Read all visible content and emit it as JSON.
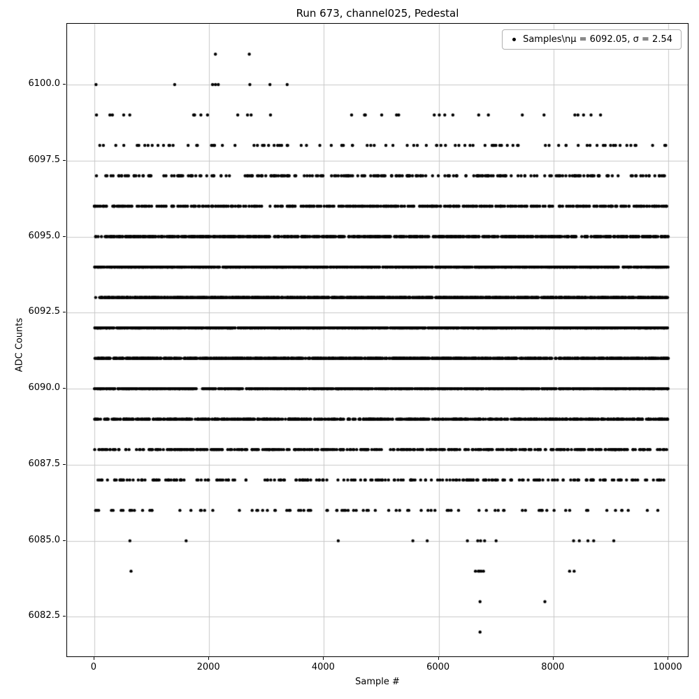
{
  "chart_data": {
    "type": "scatter",
    "title": "Run 673, channel025, Pedestal",
    "xlabel": "Sample #",
    "ylabel": "ADC Counts",
    "xlim": [
      -474,
      10340
    ],
    "ylim": [
      6081.2,
      6102.0
    ],
    "x_ticks": [
      0,
      2000,
      4000,
      6000,
      8000,
      10000
    ],
    "x_tick_labels": [
      "0",
      "2000",
      "4000",
      "6000",
      "8000",
      "10000"
    ],
    "y_ticks": [
      6082.5,
      6085.0,
      6087.5,
      6090.0,
      6092.5,
      6095.0,
      6097.5,
      6100.0
    ],
    "y_tick_labels": [
      "6082.5",
      "6085.0",
      "6087.5",
      "6090.0",
      "6092.5",
      "6095.0",
      "6097.5",
      "6100.0"
    ],
    "grid": true,
    "grid_color": "#c8c8c8",
    "marker_color": "#000000",
    "legend": {
      "position": "upper right",
      "label": "Samples\\nμ = 6092.05, σ = 2.54"
    },
    "n_samples": 10000,
    "mean": 6092.05,
    "sigma": 2.54,
    "x_range": [
      0,
      9999
    ],
    "levels": [
      {
        "adc": 6101,
        "x_values": [
          2110,
          2700
        ]
      },
      {
        "adc": 6100,
        "x_values": [
          30,
          1400,
          2060,
          2110,
          2160,
          2710,
          3060,
          3360
        ]
      },
      {
        "adc": 6099,
        "count": 32
      },
      {
        "adc": 6098,
        "count": 95
      },
      {
        "adc": 6097,
        "count": 230
      },
      {
        "adc": 6096,
        "count": 470
      },
      {
        "adc": 6095,
        "count": 800
      },
      {
        "adc": 6094,
        "count": 1170
      },
      {
        "adc": 6093,
        "count": 1460
      },
      {
        "adc": 6092,
        "count": 1570
      },
      {
        "adc": 6091,
        "count": 1440
      },
      {
        "adc": 6090,
        "count": 1130
      },
      {
        "adc": 6089,
        "count": 760
      },
      {
        "adc": 6088,
        "count": 440
      },
      {
        "adc": 6087,
        "count": 220
      },
      {
        "adc": 6086,
        "count": 90
      },
      {
        "adc": 6085,
        "x_values": [
          620,
          1600,
          4250,
          5550,
          5800,
          6500,
          6680,
          6730,
          6800,
          7000,
          8350,
          8450,
          8600,
          8700,
          9050
        ]
      },
      {
        "adc": 6084,
        "x_values": [
          640,
          6640,
          6690,
          6710,
          6740,
          6780,
          8280,
          8360
        ]
      },
      {
        "adc": 6083,
        "x_values": [
          6720,
          7850
        ]
      },
      {
        "adc": 6082,
        "x_values": [
          6720
        ]
      }
    ]
  }
}
